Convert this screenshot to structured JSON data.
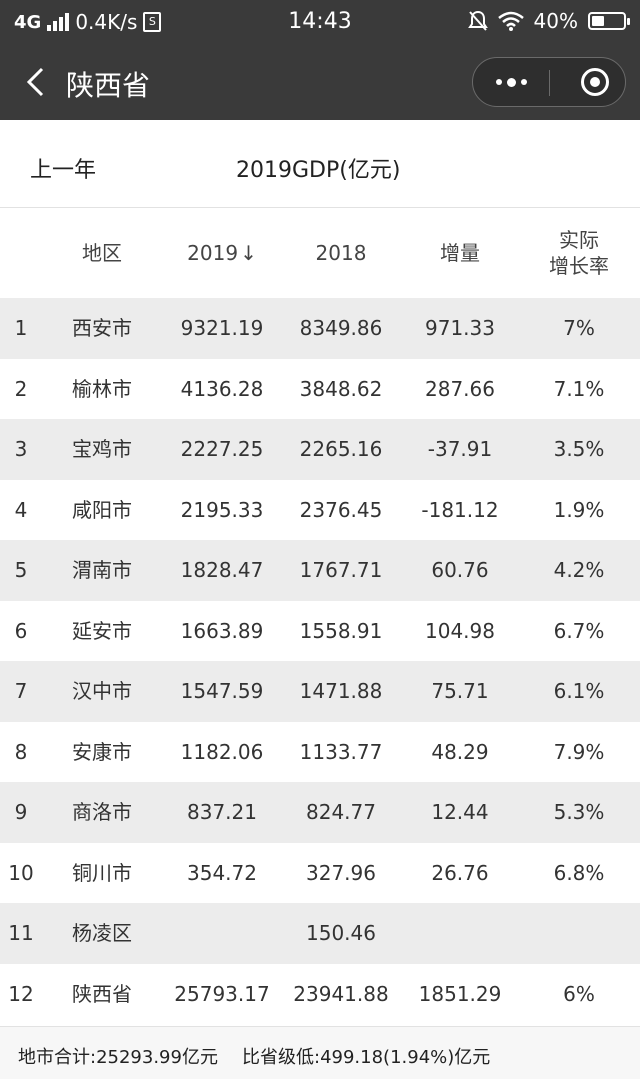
{
  "status_bar": {
    "network": "4G",
    "speed": "0.4K/s",
    "time": "14:43",
    "battery": "40%",
    "battery_level": 0.4
  },
  "nav": {
    "title": "陕西省"
  },
  "subheader": {
    "prev_year": "上一年",
    "title": "2019GDP(亿元)"
  },
  "table": {
    "headers": {
      "region": "地区",
      "y2019": "2019",
      "sort_arrow": "↓",
      "y2018": "2018",
      "increase": "增量",
      "rate_line1": "实际",
      "rate_line2": "增长率"
    },
    "rows": [
      {
        "rank": "1",
        "name": "西安市",
        "y2019": "9321.19",
        "y2018": "8349.86",
        "increase": "971.33",
        "rate": "7%"
      },
      {
        "rank": "2",
        "name": "榆林市",
        "y2019": "4136.28",
        "y2018": "3848.62",
        "increase": "287.66",
        "rate": "7.1%"
      },
      {
        "rank": "3",
        "name": "宝鸡市",
        "y2019": "2227.25",
        "y2018": "2265.16",
        "increase": "-37.91",
        "rate": "3.5%"
      },
      {
        "rank": "4",
        "name": "咸阳市",
        "y2019": "2195.33",
        "y2018": "2376.45",
        "increase": "-181.12",
        "rate": "1.9%"
      },
      {
        "rank": "5",
        "name": "渭南市",
        "y2019": "1828.47",
        "y2018": "1767.71",
        "increase": "60.76",
        "rate": "4.2%"
      },
      {
        "rank": "6",
        "name": "延安市",
        "y2019": "1663.89",
        "y2018": "1558.91",
        "increase": "104.98",
        "rate": "6.7%"
      },
      {
        "rank": "7",
        "name": "汉中市",
        "y2019": "1547.59",
        "y2018": "1471.88",
        "increase": "75.71",
        "rate": "6.1%"
      },
      {
        "rank": "8",
        "name": "安康市",
        "y2019": "1182.06",
        "y2018": "1133.77",
        "increase": "48.29",
        "rate": "7.9%"
      },
      {
        "rank": "9",
        "name": "商洛市",
        "y2019": "837.21",
        "y2018": "824.77",
        "increase": "12.44",
        "rate": "5.3%"
      },
      {
        "rank": "10",
        "name": "铜川市",
        "y2019": "354.72",
        "y2018": "327.96",
        "increase": "26.76",
        "rate": "6.8%"
      },
      {
        "rank": "11",
        "name": "杨凌区",
        "y2019": "",
        "y2018": "150.46",
        "increase": "",
        "rate": ""
      },
      {
        "rank": "12",
        "name": "陕西省",
        "y2019": "25793.17",
        "y2018": "23941.88",
        "increase": "1851.29",
        "rate": "6%"
      }
    ]
  },
  "footer": {
    "city_total": "地市合计:25293.99亿元",
    "diff": "比省级低:499.18(1.94%)亿元"
  },
  "colors": {
    "header_bg": "#3a3a3a",
    "row_alt_bg": "#ececec"
  },
  "icons": [
    "back-icon",
    "more-icon",
    "close-mini-program-icon",
    "signal-icon",
    "wifi-icon",
    "mute-icon",
    "battery-icon"
  ]
}
